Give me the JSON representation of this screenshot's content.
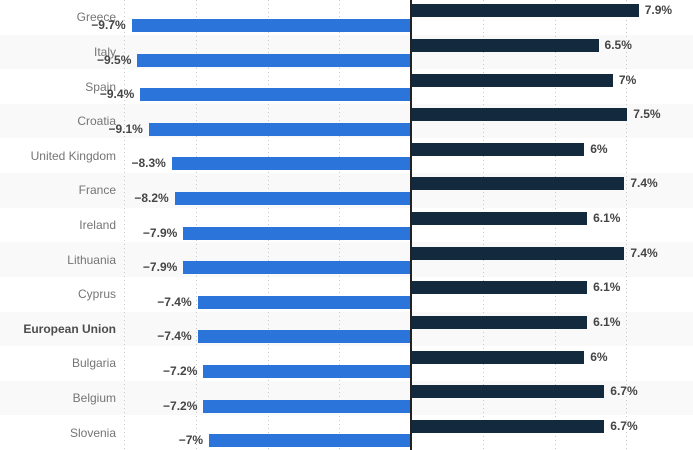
{
  "chart_data": {
    "type": "bar",
    "orientation": "horizontal",
    "categories": [
      {
        "label": "Greece",
        "bold": false
      },
      {
        "label": "Italy",
        "bold": false
      },
      {
        "label": "Spain",
        "bold": false
      },
      {
        "label": "Croatia",
        "bold": false
      },
      {
        "label": "United Kingdom",
        "bold": false
      },
      {
        "label": "France",
        "bold": false
      },
      {
        "label": "Ireland",
        "bold": false
      },
      {
        "label": "Lithuania",
        "bold": false
      },
      {
        "label": "Cyprus",
        "bold": false
      },
      {
        "label": "European Union",
        "bold": true
      },
      {
        "label": "Bulgaria",
        "bold": false
      },
      {
        "label": "Belgium",
        "bold": false
      },
      {
        "label": "Slovenia",
        "bold": false
      }
    ],
    "series": [
      {
        "name": "positive-navy-bars",
        "color": "#13293d",
        "values": [
          7.9,
          6.5,
          7,
          7.5,
          6,
          7.4,
          6.1,
          7.4,
          6.1,
          6.1,
          6,
          6.7,
          6.7
        ],
        "labels": [
          "7.9%",
          "6.5%",
          "7%",
          "7.5%",
          "6%",
          "7.4%",
          "6.1%",
          "7.4%",
          "6.1%",
          "6.1%",
          "6%",
          "6.7%",
          "6.7%"
        ]
      },
      {
        "name": "negative-blue-bars",
        "color": "#2b74da",
        "values": [
          -9.7,
          -9.5,
          -9.4,
          -9.1,
          -8.3,
          -8.2,
          -7.9,
          -7.9,
          -7.4,
          -7.4,
          -7.2,
          -7.2,
          -7
        ],
        "labels": [
          "−9.7%",
          "−9.5%",
          "−9.4%",
          "−9.1%",
          "−8.3%",
          "−8.2%",
          "−7.9%",
          "−7.9%",
          "−7.4%",
          "−7.4%",
          "−7.2%",
          "−7.2%",
          "−7%"
        ]
      }
    ],
    "xlim": [
      -10,
      10
    ],
    "grid_interval": 2.5,
    "grid": true,
    "legend": "none-visible",
    "colors": {
      "positive_bar": "#13293d",
      "negative_bar": "#2b74da",
      "row_stripe": "#f9f9f9",
      "row_base": "#ffffff",
      "gridline": "#c9c9c9",
      "axis": "#222222",
      "category_label": "#757575",
      "category_label_bold": "#4d4d4d",
      "value_label": "#454545"
    }
  }
}
